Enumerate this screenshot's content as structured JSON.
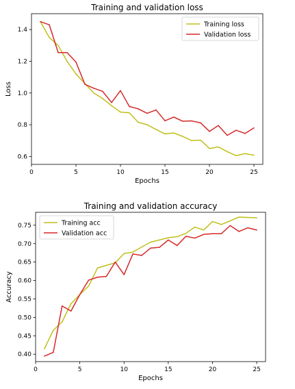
{
  "colors": {
    "training": "#bfbf1a",
    "validation": "#d62728",
    "axes": "#000000",
    "legend_border": "#cccccc"
  },
  "chart_data": [
    {
      "type": "line",
      "title": "Training and validation loss",
      "xlabel": "Epochs",
      "ylabel": "Loss",
      "xlim": [
        0,
        26
      ],
      "ylim": [
        0.55,
        1.5
      ],
      "xticks": [
        0,
        5,
        10,
        15,
        20,
        25
      ],
      "yticks": [
        0.6,
        0.8,
        1.0,
        1.2,
        1.4
      ],
      "xtick_labels": [
        "0",
        "5",
        "10",
        "15",
        "20",
        "25"
      ],
      "ytick_labels": [
        "0.6",
        "0.8",
        "1.0",
        "1.2",
        "1.4"
      ],
      "grid": false,
      "legend_position": "top-right",
      "x": [
        1,
        2,
        3,
        4,
        5,
        6,
        7,
        8,
        9,
        10,
        11,
        12,
        13,
        14,
        15,
        16,
        17,
        18,
        19,
        20,
        21,
        22,
        23,
        24,
        25
      ],
      "series": [
        {
          "name": "Training loss",
          "color_key": "training",
          "values": [
            1.45,
            1.35,
            1.3,
            1.2,
            1.12,
            1.06,
            1.0,
            0.965,
            0.92,
            0.88,
            0.875,
            0.815,
            0.8,
            0.77,
            0.742,
            0.748,
            0.726,
            0.7,
            0.703,
            0.65,
            0.66,
            0.63,
            0.605,
            0.618,
            0.608
          ]
        },
        {
          "name": "Validation loss",
          "color_key": "validation",
          "values": [
            1.45,
            1.43,
            1.255,
            1.255,
            1.195,
            1.055,
            1.03,
            1.01,
            0.94,
            1.015,
            0.915,
            0.9,
            0.872,
            0.893,
            0.825,
            0.848,
            0.822,
            0.824,
            0.812,
            0.758,
            0.795,
            0.733,
            0.765,
            0.745,
            0.78
          ]
        }
      ]
    },
    {
      "type": "line",
      "title": "Training and validation accuracy",
      "xlabel": "Epochs",
      "ylabel": "Accuracy",
      "xlim": [
        0,
        26
      ],
      "ylim": [
        0.38,
        0.785
      ],
      "xticks": [
        0,
        5,
        10,
        15,
        20,
        25
      ],
      "yticks": [
        0.4,
        0.45,
        0.5,
        0.55,
        0.6,
        0.65,
        0.7,
        0.75
      ],
      "xtick_labels": [
        "0",
        "5",
        "10",
        "15",
        "20",
        "25"
      ],
      "ytick_labels": [
        "0.40",
        "0.45",
        "0.50",
        "0.55",
        "0.60",
        "0.65",
        "0.70",
        "0.75"
      ],
      "grid": false,
      "legend_position": "top-left",
      "x": [
        1,
        2,
        3,
        4,
        5,
        6,
        7,
        8,
        9,
        10,
        11,
        12,
        13,
        14,
        15,
        16,
        17,
        18,
        19,
        20,
        21,
        22,
        23,
        24,
        25
      ],
      "series": [
        {
          "name": "Training acc",
          "color_key": "training",
          "values": [
            0.415,
            0.465,
            0.488,
            0.537,
            0.562,
            0.585,
            0.634,
            0.641,
            0.648,
            0.673,
            0.677,
            0.691,
            0.704,
            0.71,
            0.716,
            0.719,
            0.728,
            0.745,
            0.737,
            0.76,
            0.752,
            0.762,
            0.772,
            0.771,
            0.77
          ]
        },
        {
          "name": "Validation acc",
          "color_key": "validation",
          "values": [
            0.395,
            0.405,
            0.531,
            0.517,
            0.562,
            0.601,
            0.609,
            0.611,
            0.65,
            0.616,
            0.672,
            0.668,
            0.688,
            0.69,
            0.71,
            0.695,
            0.72,
            0.715,
            0.725,
            0.727,
            0.727,
            0.749,
            0.733,
            0.743,
            0.737
          ]
        }
      ]
    }
  ]
}
